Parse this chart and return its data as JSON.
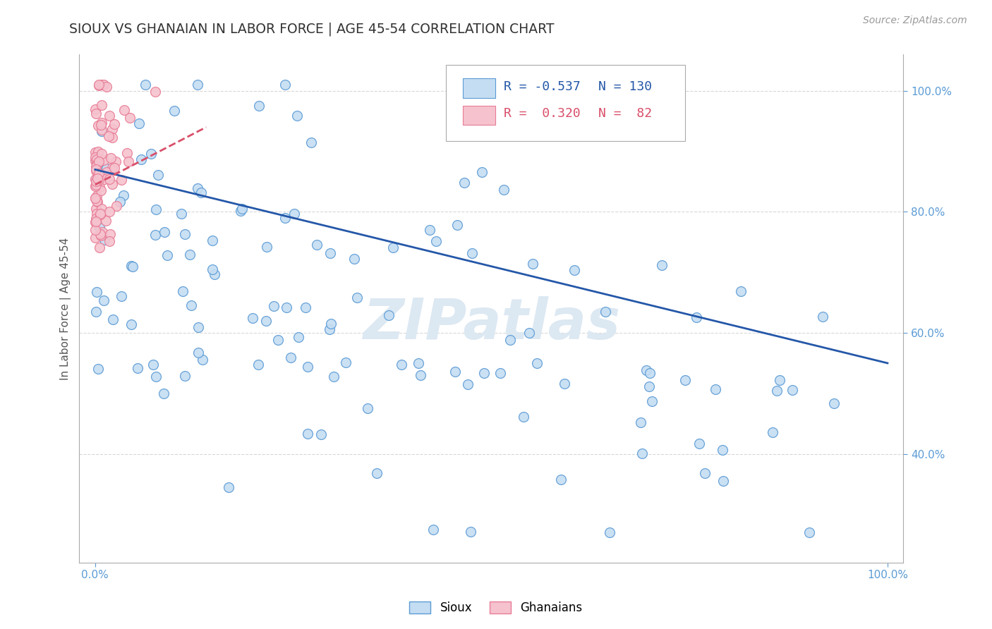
{
  "title": "SIOUX VS GHANAIAN IN LABOR FORCE | AGE 45-54 CORRELATION CHART",
  "source_text": "Source: ZipAtlas.com",
  "ylabel": "In Labor Force | Age 45-54",
  "xlim": [
    -0.02,
    1.02
  ],
  "ylim": [
    0.22,
    1.06
  ],
  "right_ytick_positions": [
    0.4,
    0.6,
    0.8,
    1.0
  ],
  "right_ytick_labels": [
    "40.0%",
    "60.0%",
    "80.0%",
    "100.0%"
  ],
  "xtick_positions": [
    0.0,
    1.0
  ],
  "xtick_labels": [
    "0.0%",
    "100.0%"
  ],
  "sioux_r": -0.537,
  "sioux_n": 130,
  "ghanaian_r": 0.32,
  "ghanaian_n": 82,
  "sioux_color": "#c5ddf2",
  "sioux_edge_color": "#5b9bd5",
  "ghanaian_color": "#f5c2ce",
  "ghanaian_edge_color": "#e87d96",
  "trend_sioux_color": "#2457a8",
  "trend_ghanaian_color": "#d94f6a",
  "watermark_color": "#dce8f2",
  "background_color": "#ffffff",
  "grid_color": "#d8d8d8",
  "marker_size": 100,
  "legend_r1": "R = -0.537",
  "legend_n1": "N = 130",
  "legend_r2": "R =  0.320",
  "legend_n2": "N =  82",
  "legend_color1": "#c5ddf2",
  "legend_edge1": "#5b9bd5",
  "legend_color2": "#f5c2ce",
  "legend_edge2": "#e87d96",
  "tick_color": "#5b9bd5",
  "axis_color": "#aaaaaa"
}
